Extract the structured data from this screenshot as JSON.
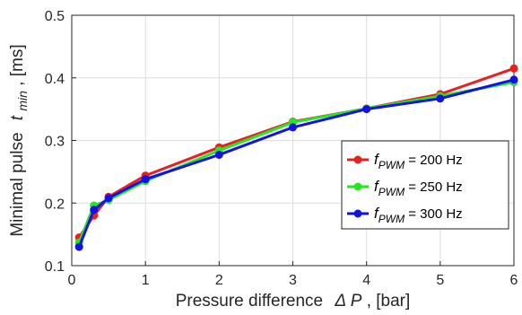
{
  "chart_data": {
    "type": "line",
    "xlabel": {
      "prefix": "Pressure difference",
      "symbol": "Δ P",
      "suffix": ", [bar]"
    },
    "ylabel": {
      "prefix": "Minimal pulse",
      "symbol": "t",
      "subscript": "min",
      "suffix": ", [ms]"
    },
    "xlim": [
      0,
      6
    ],
    "ylim": [
      0.1,
      0.5
    ],
    "xticks": [
      "0",
      "1",
      "2",
      "3",
      "4",
      "5",
      "6"
    ],
    "yticks": [
      "0.1",
      "0.2",
      "0.3",
      "0.4",
      "0.5"
    ],
    "grid": true,
    "legend_position": "right-middle",
    "x": [
      0.1,
      0.3,
      0.5,
      1,
      2,
      3,
      4,
      5,
      6
    ],
    "series": [
      {
        "legend": {
          "symbol": "f",
          "subscript": "PWM",
          "suffix": " = 200 Hz"
        },
        "color": "#e8201f",
        "values": [
          0.145,
          0.18,
          0.21,
          0.244,
          0.289,
          0.33,
          0.351,
          0.374,
          0.415
        ]
      },
      {
        "legend": {
          "symbol": "f",
          "subscript": "PWM",
          "suffix": " = 250 Hz"
        },
        "color": "#24e81f",
        "values": [
          0.137,
          0.196,
          0.205,
          0.235,
          0.284,
          0.329,
          0.351,
          0.371,
          0.393
        ]
      },
      {
        "legend": {
          "symbol": "f",
          "subscript": "PWM",
          "suffix": " = 300 Hz"
        },
        "color": "#1212e8",
        "values": [
          0.13,
          0.189,
          0.208,
          0.238,
          0.277,
          0.321,
          0.35,
          0.367,
          0.397
        ]
      }
    ]
  }
}
